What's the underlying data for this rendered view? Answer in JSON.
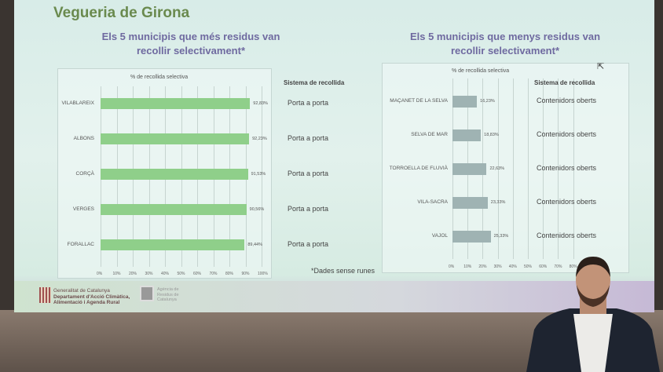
{
  "slide": {
    "title": "Vegueria de Girona",
    "left_subtitle": "Els 5 municipis que més residus van recollir selectivament*",
    "right_subtitle": "Els 5 municipis que menys residus van recollir selectivament*",
    "system_header": "Sistema de recollida",
    "note": "*Dades sense runes",
    "footer": {
      "gencat": [
        "Generalitat de Catalunya",
        "Departament d'Acció Climàtica,",
        "Alimentació i Agenda Rural"
      ],
      "agency": [
        "Agència de",
        "Residus de",
        "Catalunya"
      ]
    }
  },
  "chart_data": [
    {
      "type": "bar",
      "orientation": "horizontal",
      "title": "% de recollida selectiva",
      "categories": [
        "VILABLAREIX",
        "ALBONS",
        "CORÇÀ",
        "VERGES",
        "FORALLAC"
      ],
      "values": [
        92.83,
        92.23,
        91.53,
        90.56,
        89.44
      ],
      "labels": [
        "92,83%",
        "92,23%",
        "91,53%",
        "90,56%",
        "89,44%"
      ],
      "systems": [
        "Porta a porta",
        "Porta a porta",
        "Porta a porta",
        "Porta a porta",
        "Porta a porta"
      ],
      "xlim": [
        0,
        100
      ],
      "ticks": [
        "0%",
        "10%",
        "20%",
        "30%",
        "40%",
        "50%",
        "60%",
        "70%",
        "80%",
        "90%",
        "100%"
      ],
      "grid": true,
      "color": "#8fcf8a"
    },
    {
      "type": "bar",
      "orientation": "horizontal",
      "title": "% de recollida selectiva",
      "categories": [
        "MAÇANET DE LA SELVA",
        "SELVA DE MAR",
        "TORROELLA DE FLUVIÀ",
        "VILA-SACRA",
        "VAJOL"
      ],
      "values": [
        16.23,
        18.83,
        22.63,
        23.33,
        25.33
      ],
      "labels": [
        "16,23%",
        "18,83%",
        "22,63%",
        "23,33%",
        "25,33%"
      ],
      "systems": [
        "Contenidors oberts",
        "Contenidors oberts",
        "Contenidors oberts",
        "Contenidors oberts",
        "Contenidors oberts"
      ],
      "xlim": [
        0,
        100
      ],
      "ticks": [
        "0%",
        "10%",
        "20%",
        "30%",
        "40%",
        "50%",
        "60%",
        "70%",
        "80%"
      ],
      "grid": true,
      "color": "#9fb3b3"
    }
  ]
}
